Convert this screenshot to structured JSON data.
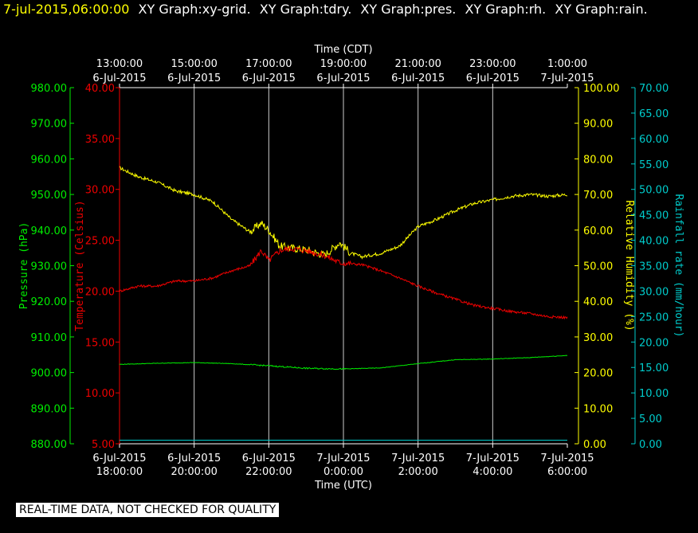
{
  "header": {
    "timestamp": "7-jul-2015,06:00:00",
    "graphs": [
      "XY Graph:xy-grid.",
      "XY Graph:tdry.",
      "XY Graph:pres.",
      "XY Graph:rh.",
      "XY Graph:rain."
    ]
  },
  "footer_badge": "REAL-TIME DATA, NOT CHECKED FOR QUALITY",
  "chart_data": {
    "type": "line",
    "grid": "vertical",
    "x_top": {
      "label": "Time (CDT)",
      "ticks": [
        {
          "time": "13:00:00",
          "date": "6-Jul-2015"
        },
        {
          "time": "15:00:00",
          "date": "6-Jul-2015"
        },
        {
          "time": "17:00:00",
          "date": "6-Jul-2015"
        },
        {
          "time": "19:00:00",
          "date": "6-Jul-2015"
        },
        {
          "time": "21:00:00",
          "date": "6-Jul-2015"
        },
        {
          "time": "23:00:00",
          "date": "6-Jul-2015"
        },
        {
          "time": "1:00:00",
          "date": "7-Jul-2015"
        }
      ]
    },
    "x_bottom": {
      "label": "Time (UTC)",
      "ticks": [
        {
          "date": "6-Jul-2015",
          "time": "18:00:00"
        },
        {
          "date": "6-Jul-2015",
          "time": "20:00:00"
        },
        {
          "date": "6-Jul-2015",
          "time": "22:00:00"
        },
        {
          "date": "7-Jul-2015",
          "time": "0:00:00"
        },
        {
          "date": "7-Jul-2015",
          "time": "2:00:00"
        },
        {
          "date": "7-Jul-2015",
          "time": "4:00:00"
        },
        {
          "date": "7-Jul-2015",
          "time": "6:00:00"
        }
      ]
    },
    "x_hours_utc": [
      18,
      20,
      22,
      24,
      26,
      28,
      30
    ],
    "axes": {
      "pressure": {
        "label": "Pressure (hPa)",
        "color": "#00ee00",
        "ylim": [
          880,
          980
        ],
        "step": 10,
        "ticks": [
          "880.00",
          "890.00",
          "900.00",
          "910.00",
          "920.00",
          "930.00",
          "940.00",
          "950.00",
          "960.00",
          "970.00",
          "980.00"
        ]
      },
      "temperature": {
        "label": "Temperature (Celsius)",
        "color": "#ee0000",
        "ylim": [
          5,
          40
        ],
        "step": 5,
        "ticks": [
          "5.00",
          "10.00",
          "15.00",
          "20.00",
          "25.00",
          "30.00",
          "35.00",
          "40.00"
        ]
      },
      "rh": {
        "label": "Relative Humidity (%)",
        "color": "#ffff00",
        "ylim": [
          0,
          100
        ],
        "step": 10,
        "ticks": [
          "0.00",
          "10.00",
          "20.00",
          "30.00",
          "40.00",
          "50.00",
          "60.00",
          "70.00",
          "80.00",
          "90.00",
          "100.00"
        ]
      },
      "rain": {
        "label": "Rainfall rate (mm/hour)",
        "color": "#00cccc",
        "ylim": [
          0,
          70
        ],
        "step": 5,
        "ticks": [
          "0.00",
          "5.00",
          "10.00",
          "15.00",
          "20.00",
          "25.00",
          "30.00",
          "35.00",
          "40.00",
          "45.00",
          "50.00",
          "55.00",
          "60.00",
          "65.00",
          "70.00"
        ]
      }
    },
    "series": [
      {
        "axis": "rh",
        "color": "#ffff00",
        "x": [
          18.0,
          18.5,
          19.0,
          19.5,
          20.0,
          20.5,
          21.0,
          21.5,
          21.8,
          22.0,
          22.3,
          22.6,
          23.0,
          23.5,
          23.9,
          24.2,
          24.5,
          25.0,
          25.5,
          26.0,
          26.5,
          27.0,
          27.5,
          28.0,
          28.5,
          29.0,
          29.5,
          30.0
        ],
        "y": [
          77.5,
          75.0,
          73.5,
          71.0,
          70.0,
          68.0,
          63.0,
          59.5,
          62.0,
          60.0,
          55.5,
          55.0,
          54.5,
          53.0,
          56.5,
          53.5,
          52.5,
          53.5,
          55.5,
          61.0,
          63.0,
          65.5,
          67.5,
          68.5,
          69.5,
          70.0,
          69.5,
          70.0
        ]
      },
      {
        "axis": "temperature",
        "color": "#ee0000",
        "x": [
          18.0,
          18.5,
          19.0,
          19.5,
          20.0,
          20.5,
          21.0,
          21.5,
          21.8,
          22.0,
          22.3,
          22.6,
          23.0,
          23.5,
          23.9,
          24.2,
          24.5,
          25.0,
          25.5,
          26.0,
          26.5,
          27.0,
          27.5,
          28.0,
          28.5,
          29.0,
          29.5,
          30.0
        ],
        "y": [
          20.0,
          20.5,
          20.5,
          21.0,
          21.0,
          21.3,
          22.0,
          22.5,
          24.0,
          23.0,
          24.0,
          24.2,
          24.0,
          23.5,
          22.8,
          22.7,
          22.6,
          22.0,
          21.3,
          20.5,
          19.8,
          19.2,
          18.6,
          18.3,
          18.0,
          17.8,
          17.5,
          17.4
        ]
      },
      {
        "axis": "pressure",
        "color": "#00ee00",
        "x": [
          18.0,
          19.0,
          20.0,
          21.0,
          22.0,
          23.0,
          24.0,
          25.0,
          26.0,
          27.0,
          28.0,
          29.0,
          30.0
        ],
        "y": [
          902.3,
          902.6,
          902.8,
          902.5,
          901.9,
          901.2,
          901.0,
          901.3,
          902.5,
          903.6,
          903.8,
          904.2,
          904.8
        ]
      },
      {
        "axis": "rain",
        "color": "#00cccc",
        "x": [
          18.0,
          30.0
        ],
        "y": [
          0.7,
          0.7
        ]
      }
    ]
  }
}
